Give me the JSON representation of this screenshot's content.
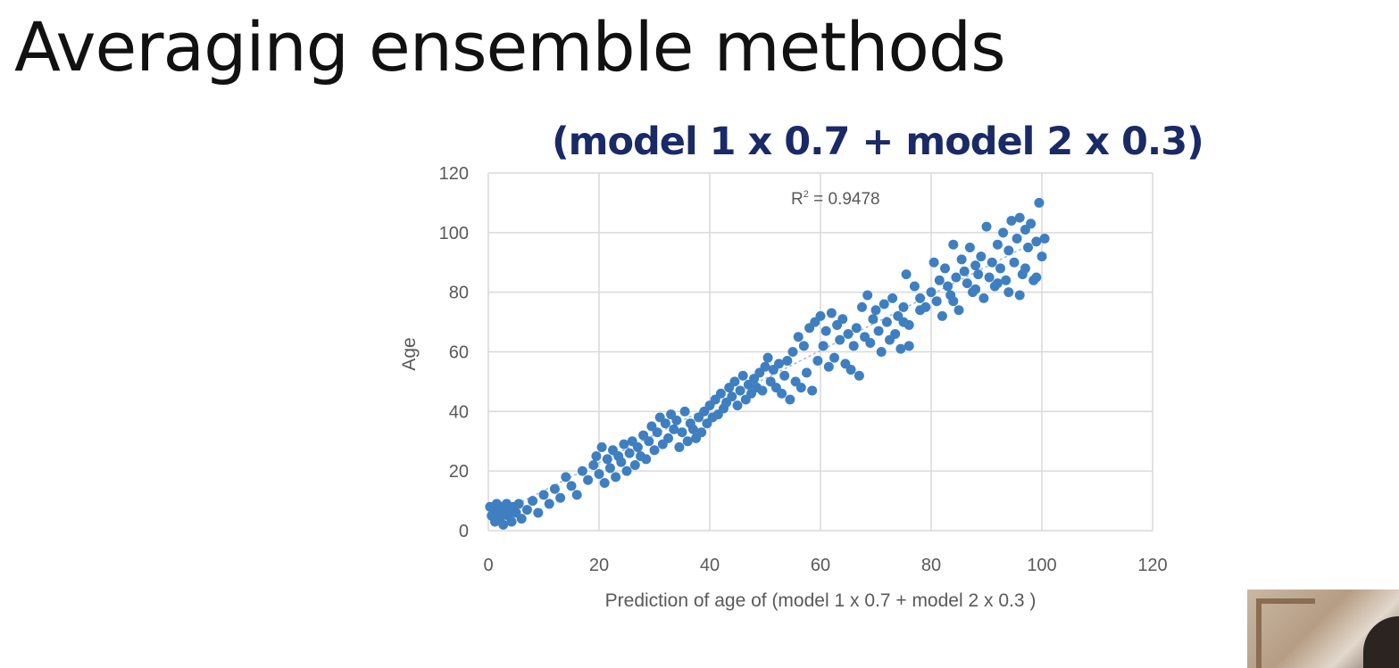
{
  "slide": {
    "title": "Averaging ensemble methods"
  },
  "colors": {
    "point": "#3f7fc0",
    "title": "#1a2a66",
    "grid": "#d9d9d9",
    "axis_text": "#595959"
  },
  "chart_data": {
    "type": "scatter",
    "title": "(model 1 x 0.7 + model 2 x 0.3)",
    "xlabel": "Prediction of age of (model 1 x 0.7 + model 2 x 0.3 )",
    "ylabel": "Age",
    "xlim": [
      0,
      120
    ],
    "ylim": [
      0,
      120
    ],
    "xticks": [
      0,
      20,
      40,
      60,
      80,
      100,
      120
    ],
    "yticks": [
      0,
      20,
      40,
      60,
      80,
      100,
      120
    ],
    "grid": true,
    "annotation": {
      "r2_label": "R",
      "r2_sup": "2",
      "r2_value": " = 0.9478"
    },
    "trendline": {
      "x": [
        0,
        100
      ],
      "y": [
        4,
        98
      ]
    },
    "series": [
      {
        "points": [
          [
            0.3,
            8
          ],
          [
            0.6,
            5
          ],
          [
            0.9,
            7
          ],
          [
            1.2,
            3
          ],
          [
            1.5,
            9
          ],
          [
            1.8,
            6
          ],
          [
            2.1,
            4
          ],
          [
            2.4,
            8
          ],
          [
            2.7,
            2
          ],
          [
            3.0,
            6
          ],
          [
            3.3,
            9
          ],
          [
            3.6,
            5
          ],
          [
            3.9,
            7
          ],
          [
            4.2,
            3
          ],
          [
            4.5,
            8
          ],
          [
            5,
            6
          ],
          [
            5.5,
            9
          ],
          [
            6,
            4
          ],
          [
            7,
            7
          ],
          [
            8,
            10
          ],
          [
            9,
            6
          ],
          [
            10,
            12
          ],
          [
            11,
            9
          ],
          [
            12,
            14
          ],
          [
            13,
            11
          ],
          [
            14,
            18
          ],
          [
            15,
            15
          ],
          [
            16,
            12
          ],
          [
            17,
            20
          ],
          [
            18,
            17
          ],
          [
            19,
            22
          ],
          [
            19.5,
            25
          ],
          [
            20,
            19
          ],
          [
            20.5,
            28
          ],
          [
            21,
            16
          ],
          [
            21.5,
            24
          ],
          [
            22,
            21
          ],
          [
            22.5,
            27
          ],
          [
            23,
            18
          ],
          [
            23.5,
            25
          ],
          [
            24,
            23
          ],
          [
            24.5,
            29
          ],
          [
            25,
            20
          ],
          [
            25.5,
            26
          ],
          [
            26,
            30
          ],
          [
            26.5,
            22
          ],
          [
            27,
            28
          ],
          [
            27.5,
            25
          ],
          [
            28,
            32
          ],
          [
            28.5,
            24
          ],
          [
            29,
            30
          ],
          [
            29.5,
            35
          ],
          [
            30,
            27
          ],
          [
            30.5,
            33
          ],
          [
            31,
            38
          ],
          [
            31.5,
            29
          ],
          [
            32,
            36
          ],
          [
            32.5,
            31
          ],
          [
            33,
            39
          ],
          [
            33.5,
            34
          ],
          [
            34,
            37
          ],
          [
            34.5,
            28
          ],
          [
            35,
            33
          ],
          [
            35.5,
            40
          ],
          [
            36,
            30
          ],
          [
            36.5,
            36
          ],
          [
            37,
            34
          ],
          [
            37.5,
            31
          ],
          [
            38,
            38
          ],
          [
            38.5,
            33
          ],
          [
            39,
            40
          ],
          [
            39.5,
            36
          ],
          [
            40,
            42
          ],
          [
            40.5,
            38
          ],
          [
            41,
            44
          ],
          [
            41.5,
            39
          ],
          [
            42,
            46
          ],
          [
            42.5,
            41
          ],
          [
            43,
            43
          ],
          [
            43.5,
            48
          ],
          [
            44,
            45
          ],
          [
            44.5,
            50
          ],
          [
            45,
            42
          ],
          [
            45.5,
            47
          ],
          [
            46,
            52
          ],
          [
            46.5,
            44
          ],
          [
            47,
            49
          ],
          [
            47.5,
            46
          ],
          [
            48,
            51
          ],
          [
            48.5,
            48
          ],
          [
            49,
            53
          ],
          [
            49.5,
            47
          ],
          [
            50,
            55
          ],
          [
            50.5,
            58
          ],
          [
            51,
            50
          ],
          [
            51.5,
            54
          ],
          [
            52,
            48
          ],
          [
            52.5,
            56
          ],
          [
            53,
            46
          ],
          [
            53.5,
            52
          ],
          [
            54,
            57
          ],
          [
            54.5,
            44
          ],
          [
            55,
            60
          ],
          [
            55.5,
            50
          ],
          [
            56,
            65
          ],
          [
            56.5,
            48
          ],
          [
            57,
            62
          ],
          [
            57.5,
            53
          ],
          [
            58,
            68
          ],
          [
            58.5,
            47
          ],
          [
            59,
            70
          ],
          [
            59.5,
            57
          ],
          [
            60,
            72
          ],
          [
            60.5,
            62
          ],
          [
            61,
            67
          ],
          [
            61.5,
            55
          ],
          [
            62,
            73
          ],
          [
            62.5,
            58
          ],
          [
            63,
            69
          ],
          [
            63.5,
            64
          ],
          [
            64,
            71
          ],
          [
            64.5,
            56
          ],
          [
            65,
            66
          ],
          [
            65.5,
            54
          ],
          [
            66,
            62
          ],
          [
            66.5,
            68
          ],
          [
            67,
            52
          ],
          [
            67.5,
            75
          ],
          [
            68,
            65
          ],
          [
            68.5,
            79
          ],
          [
            69,
            63
          ],
          [
            69.5,
            71
          ],
          [
            70,
            74
          ],
          [
            70.5,
            67
          ],
          [
            71,
            60
          ],
          [
            71.5,
            76
          ],
          [
            72,
            70
          ],
          [
            72.5,
            64
          ],
          [
            73,
            78
          ],
          [
            73.5,
            66
          ],
          [
            74,
            72
          ],
          [
            74.5,
            61
          ],
          [
            75,
            75
          ],
          [
            75.5,
            86
          ],
          [
            76,
            69
          ],
          [
            77,
            82
          ],
          [
            78,
            78
          ],
          [
            79,
            75
          ],
          [
            80,
            80
          ],
          [
            80.5,
            90
          ],
          [
            81,
            77
          ],
          [
            81.5,
            84
          ],
          [
            82,
            72
          ],
          [
            82.5,
            88
          ],
          [
            83,
            82
          ],
          [
            83.5,
            79
          ],
          [
            84,
            96
          ],
          [
            84.5,
            85
          ],
          [
            85,
            74
          ],
          [
            85.5,
            91
          ],
          [
            86,
            87
          ],
          [
            86.5,
            83
          ],
          [
            87,
            95
          ],
          [
            87.5,
            80
          ],
          [
            88,
            89
          ],
          [
            88.5,
            86
          ],
          [
            89,
            92
          ],
          [
            89.5,
            78
          ],
          [
            90,
            102
          ],
          [
            90.5,
            85
          ],
          [
            91,
            90
          ],
          [
            91.5,
            82
          ],
          [
            92,
            96
          ],
          [
            92.5,
            88
          ],
          [
            93,
            100
          ],
          [
            93.5,
            84
          ],
          [
            94,
            94
          ],
          [
            94.5,
            104
          ],
          [
            95,
            90
          ],
          [
            95.5,
            98
          ],
          [
            96,
            105
          ],
          [
            96.5,
            86
          ],
          [
            97,
            101
          ],
          [
            97.5,
            95
          ],
          [
            98,
            103
          ],
          [
            98.5,
            84
          ],
          [
            99,
            97
          ],
          [
            99.5,
            110
          ],
          [
            100,
            92
          ],
          [
            100.5,
            98
          ],
          [
            94,
            80
          ],
          [
            96,
            79
          ],
          [
            92,
            83
          ],
          [
            97,
            88
          ],
          [
            99,
            85
          ],
          [
            75,
            70
          ],
          [
            78,
            74
          ],
          [
            88,
            81
          ],
          [
            84,
            77
          ],
          [
            76,
            62
          ]
        ]
      }
    ]
  }
}
